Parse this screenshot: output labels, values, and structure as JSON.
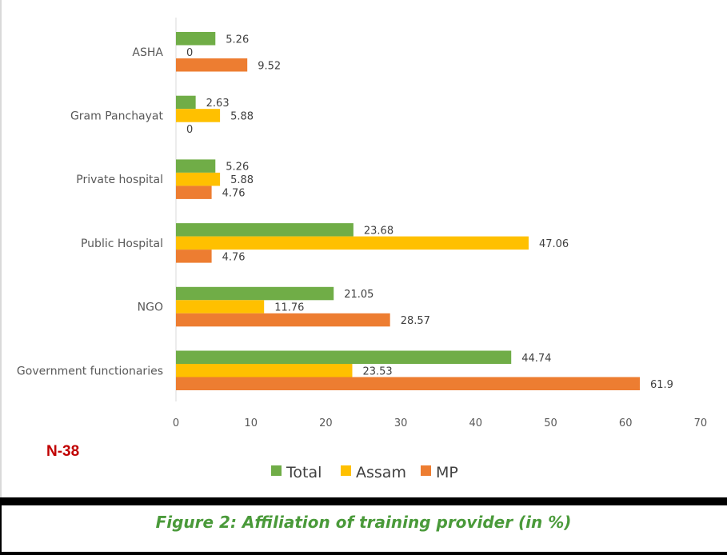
{
  "chart_data": {
    "type": "bar",
    "orientation": "horizontal",
    "categories": [
      "ASHA",
      "Gram Panchayat",
      "Private hospital",
      "Public Hospital",
      "NGO",
      "Government functionaries"
    ],
    "series": [
      {
        "name": "Total",
        "color": "#70ad47",
        "values": [
          5.26,
          2.63,
          5.26,
          23.68,
          21.05,
          44.74
        ]
      },
      {
        "name": "Assam",
        "color": "#ffc000",
        "values": [
          0,
          5.88,
          5.88,
          47.06,
          11.76,
          23.53
        ]
      },
      {
        "name": "MP",
        "color": "#ed7d31",
        "values": [
          9.52,
          0,
          4.76,
          4.76,
          28.57,
          61.9
        ]
      }
    ],
    "value_labels": [
      [
        "5.26",
        "2.63",
        "5.26",
        "23.68",
        "21.05",
        "44.74"
      ],
      [
        "0",
        "5.88",
        "5.88",
        "47.06",
        "11.76",
        "23.53"
      ],
      [
        "9.52",
        "0",
        "4.76",
        "4.76",
        "28.57",
        "61.9"
      ]
    ],
    "xlim": [
      0,
      70
    ],
    "xticks": [
      0,
      10,
      20,
      30,
      40,
      50,
      60,
      70
    ],
    "xtick_labels": [
      "0",
      "10",
      "20",
      "30",
      "40",
      "50",
      "60",
      "70"
    ],
    "grid": false,
    "legend_position": "bottom",
    "title": "",
    "xlabel": "",
    "ylabel": ""
  },
  "note": "N-38",
  "caption": "Figure 2: Affiliation of training provider (in %)",
  "colors": {
    "caption": "#4a9a3a",
    "note": "#c00000",
    "axis": "#d9d9d9"
  }
}
